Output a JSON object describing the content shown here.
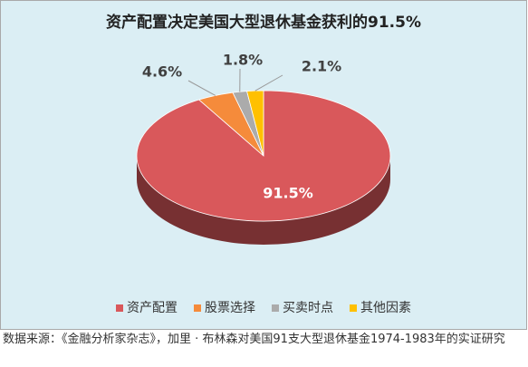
{
  "chart_data": {
    "type": "pie3d",
    "title": "资产配置决定美国大型退休基金获利的91.5%",
    "categories": [
      "资产配置",
      "股票选择",
      "买卖时点",
      "其他因素"
    ],
    "values": [
      91.5,
      4.6,
      1.8,
      2.1
    ],
    "value_labels": [
      "91.5%",
      "4.6%",
      "1.8%",
      "2.1%"
    ],
    "colors": [
      "#d9585b",
      "#f58b3b",
      "#ababab",
      "#ffc000"
    ],
    "legend": "bottom"
  },
  "source": "数据来源：《金融分析家杂志》，加里 · 布林森对美国91支大型退休基金1974-1983年的实证研究"
}
